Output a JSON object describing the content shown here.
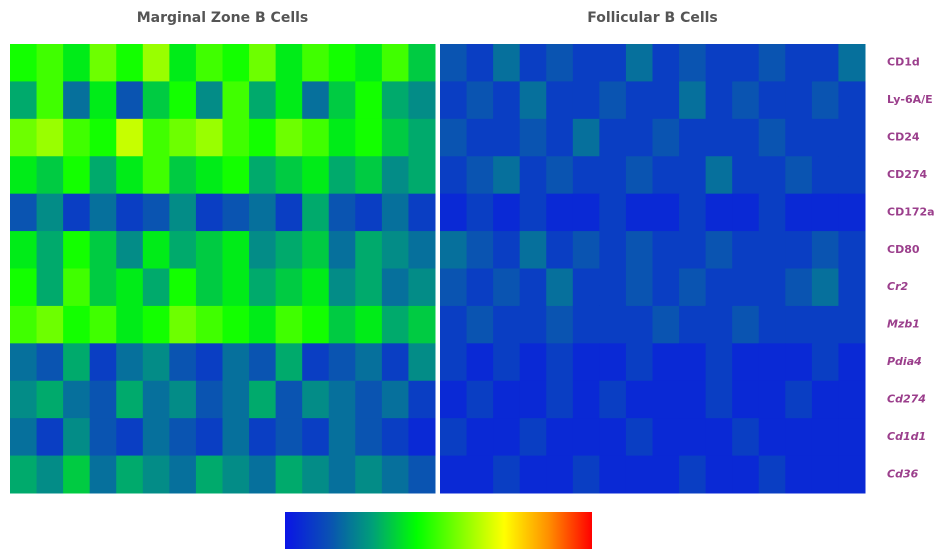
{
  "chart_data": {
    "type": "heatmap",
    "column_groups": [
      {
        "name": "Marginal Zone B Cells",
        "values": [
          [
            0.45,
            0.5,
            0.4,
            0.55,
            0.45,
            0.6,
            0.4,
            0.5,
            0.45,
            0.55,
            0.4,
            0.5,
            0.45,
            0.4,
            0.5,
            0.35
          ],
          [
            0.3,
            0.5,
            0.2,
            0.4,
            0.15,
            0.35,
            0.45,
            0.25,
            0.5,
            0.3,
            0.4,
            0.2,
            0.35,
            0.45,
            0.3,
            0.25
          ],
          [
            0.55,
            0.6,
            0.5,
            0.45,
            0.65,
            0.5,
            0.55,
            0.6,
            0.5,
            0.45,
            0.55,
            0.5,
            0.4,
            0.45,
            0.35,
            0.3
          ],
          [
            0.4,
            0.35,
            0.45,
            0.3,
            0.4,
            0.5,
            0.35,
            0.4,
            0.45,
            0.3,
            0.35,
            0.4,
            0.3,
            0.35,
            0.25,
            0.3
          ],
          [
            0.15,
            0.25,
            0.1,
            0.2,
            0.1,
            0.15,
            0.25,
            0.1,
            0.15,
            0.2,
            0.1,
            0.3,
            0.15,
            0.1,
            0.2,
            0.1
          ],
          [
            0.4,
            0.3,
            0.45,
            0.35,
            0.25,
            0.4,
            0.3,
            0.35,
            0.4,
            0.25,
            0.3,
            0.35,
            0.2,
            0.3,
            0.25,
            0.2
          ],
          [
            0.45,
            0.3,
            0.5,
            0.35,
            0.4,
            0.3,
            0.45,
            0.35,
            0.4,
            0.3,
            0.35,
            0.4,
            0.25,
            0.3,
            0.2,
            0.25
          ],
          [
            0.5,
            0.55,
            0.45,
            0.5,
            0.4,
            0.45,
            0.55,
            0.5,
            0.45,
            0.4,
            0.5,
            0.45,
            0.35,
            0.4,
            0.3,
            0.35
          ],
          [
            0.2,
            0.15,
            0.3,
            0.1,
            0.2,
            0.25,
            0.15,
            0.1,
            0.2,
            0.15,
            0.3,
            0.1,
            0.15,
            0.2,
            0.1,
            0.25
          ],
          [
            0.25,
            0.3,
            0.2,
            0.15,
            0.3,
            0.2,
            0.25,
            0.15,
            0.2,
            0.3,
            0.15,
            0.25,
            0.2,
            0.15,
            0.2,
            0.1
          ],
          [
            0.2,
            0.1,
            0.25,
            0.15,
            0.1,
            0.2,
            0.15,
            0.1,
            0.2,
            0.1,
            0.15,
            0.1,
            0.2,
            0.15,
            0.1,
            0.05
          ],
          [
            0.3,
            0.25,
            0.35,
            0.2,
            0.3,
            0.25,
            0.2,
            0.3,
            0.25,
            0.2,
            0.3,
            0.25,
            0.2,
            0.25,
            0.2,
            0.15
          ]
        ]
      },
      {
        "name": "Follicular B Cells",
        "values": [
          [
            0.15,
            0.1,
            0.2,
            0.1,
            0.15,
            0.1,
            0.1,
            0.2,
            0.1,
            0.15,
            0.1,
            0.1,
            0.15,
            0.1,
            0.1,
            0.2
          ],
          [
            0.1,
            0.15,
            0.1,
            0.2,
            0.1,
            0.1,
            0.15,
            0.1,
            0.1,
            0.2,
            0.1,
            0.15,
            0.1,
            0.1,
            0.15,
            0.1
          ],
          [
            0.15,
            0.1,
            0.1,
            0.15,
            0.1,
            0.2,
            0.1,
            0.1,
            0.15,
            0.1,
            0.1,
            0.1,
            0.15,
            0.1,
            0.1,
            0.1
          ],
          [
            0.1,
            0.15,
            0.2,
            0.1,
            0.15,
            0.1,
            0.1,
            0.15,
            0.1,
            0.1,
            0.2,
            0.1,
            0.1,
            0.15,
            0.1,
            0.1
          ],
          [
            0.05,
            0.1,
            0.05,
            0.1,
            0.05,
            0.05,
            0.1,
            0.05,
            0.05,
            0.1,
            0.05,
            0.05,
            0.1,
            0.05,
            0.05,
            0.05
          ],
          [
            0.2,
            0.15,
            0.1,
            0.2,
            0.1,
            0.15,
            0.1,
            0.15,
            0.1,
            0.1,
            0.15,
            0.1,
            0.1,
            0.1,
            0.15,
            0.1
          ],
          [
            0.15,
            0.1,
            0.15,
            0.1,
            0.2,
            0.1,
            0.1,
            0.15,
            0.1,
            0.15,
            0.1,
            0.1,
            0.1,
            0.15,
            0.2,
            0.1
          ],
          [
            0.1,
            0.15,
            0.1,
            0.1,
            0.15,
            0.1,
            0.1,
            0.1,
            0.15,
            0.1,
            0.1,
            0.15,
            0.1,
            0.1,
            0.1,
            0.1
          ],
          [
            0.1,
            0.05,
            0.1,
            0.05,
            0.1,
            0.05,
            0.05,
            0.1,
            0.05,
            0.05,
            0.1,
            0.05,
            0.05,
            0.05,
            0.1,
            0.05
          ],
          [
            0.05,
            0.1,
            0.05,
            0.05,
            0.1,
            0.05,
            0.1,
            0.05,
            0.05,
            0.05,
            0.1,
            0.05,
            0.05,
            0.1,
            0.05,
            0.05
          ],
          [
            0.1,
            0.05,
            0.05,
            0.1,
            0.05,
            0.05,
            0.05,
            0.1,
            0.05,
            0.05,
            0.05,
            0.1,
            0.05,
            0.05,
            0.05,
            0.05
          ],
          [
            0.05,
            0.05,
            0.1,
            0.05,
            0.05,
            0.1,
            0.05,
            0.05,
            0.05,
            0.1,
            0.05,
            0.05,
            0.1,
            0.05,
            0.05,
            0.05
          ]
        ]
      }
    ],
    "rows": [
      {
        "label": "CD1d",
        "italic": false
      },
      {
        "label": "Ly-6A/E",
        "italic": false
      },
      {
        "label": "CD24",
        "italic": false
      },
      {
        "label": "CD274",
        "italic": false
      },
      {
        "label": "CD172a",
        "italic": false
      },
      {
        "label": "CD80",
        "italic": false
      },
      {
        "label": "Cr2",
        "italic": true
      },
      {
        "label": "Mzb1",
        "italic": true
      },
      {
        "label": "Pdia4",
        "italic": true
      },
      {
        "label": "Cd274",
        "italic": true
      },
      {
        "label": "Cd1d1",
        "italic": true
      },
      {
        "label": "Cd36",
        "italic": true
      }
    ],
    "clim": [
      0,
      1
    ],
    "colormap": [
      "#0a14e6",
      "#0a50b4",
      "#00a078",
      "#00ff00",
      "#80ff00",
      "#ffff00",
      "#ff9000",
      "#ff0000"
    ]
  }
}
